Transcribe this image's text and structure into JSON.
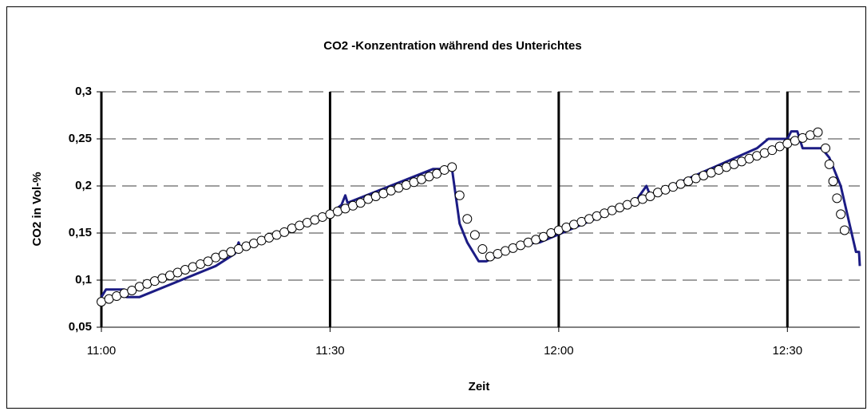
{
  "chart_data": {
    "type": "line",
    "title": "CO2 -Konzentration während des Unterichtes",
    "x_label": "Zeit",
    "y_label": "CO2 in Vol-%",
    "xlim": [
      0,
      99.5
    ],
    "xticks": [
      {
        "value": 0,
        "label": "11:00"
      },
      {
        "value": 30,
        "label": "11:30"
      },
      {
        "value": 60,
        "label": "12:00"
      },
      {
        "value": 90,
        "label": "12:30"
      }
    ],
    "ylim": [
      0.05,
      0.3
    ],
    "yticks": [
      {
        "value": 0.05,
        "label": "0,05"
      },
      {
        "value": 0.1,
        "label": "0,1"
      },
      {
        "value": 0.15,
        "label": "0,15"
      },
      {
        "value": 0.2,
        "label": "0,2"
      },
      {
        "value": 0.25,
        "label": "0,25"
      },
      {
        "value": 0.3,
        "label": "0,3"
      }
    ],
    "grid": true,
    "series": [
      {
        "kind": "line",
        "color": "#1c1c84",
        "x": [
          0,
          0.6,
          3,
          3.3,
          5,
          15,
          17.5,
          18,
          18.3,
          30,
          31.5,
          32,
          32.3,
          43.5,
          46,
          47,
          48,
          49.5,
          50.5,
          55,
          57.5,
          70,
          71.5,
          72,
          86,
          87.5,
          90,
          90.5,
          91.3,
          92,
          94.5,
          95.5,
          97,
          99,
          99.4,
          99.5
        ],
        "values": [
          0.082,
          0.09,
          0.09,
          0.082,
          0.082,
          0.115,
          0.128,
          0.14,
          0.133,
          0.17,
          0.18,
          0.19,
          0.182,
          0.218,
          0.218,
          0.16,
          0.14,
          0.12,
          0.12,
          0.138,
          0.14,
          0.183,
          0.2,
          0.19,
          0.24,
          0.25,
          0.25,
          0.258,
          0.258,
          0.24,
          0.24,
          0.23,
          0.2,
          0.13,
          0.13,
          0.115
        ]
      },
      {
        "kind": "markers",
        "color": "#ffffff",
        "x": [
          0,
          1,
          2,
          3,
          4,
          5,
          6,
          7,
          8,
          9,
          10,
          11,
          12,
          13,
          14,
          15,
          16,
          17,
          18,
          19,
          20,
          21,
          22,
          23,
          24,
          25,
          26,
          27,
          28,
          29,
          30,
          31,
          32,
          33,
          34,
          35,
          36,
          37,
          38,
          39,
          40,
          41,
          42,
          43,
          44,
          45,
          46,
          47,
          48,
          49,
          50,
          51,
          52,
          53,
          54,
          55,
          56,
          57,
          58,
          59,
          60,
          61,
          62,
          63,
          64,
          65,
          66,
          67,
          68,
          69,
          70,
          71,
          72,
          73,
          74,
          75,
          76,
          77,
          78,
          79,
          80,
          81,
          82,
          83,
          84,
          85,
          86,
          87,
          88,
          89,
          90,
          91,
          92,
          93,
          94,
          95,
          95.5,
          96,
          96.5,
          97,
          97.5
        ],
        "values": [
          0.077,
          0.08,
          0.083,
          0.086,
          0.089,
          0.093,
          0.096,
          0.099,
          0.102,
          0.105,
          0.108,
          0.111,
          0.114,
          0.117,
          0.12,
          0.124,
          0.127,
          0.13,
          0.133,
          0.136,
          0.139,
          0.142,
          0.145,
          0.148,
          0.151,
          0.155,
          0.158,
          0.161,
          0.164,
          0.167,
          0.17,
          0.173,
          0.176,
          0.179,
          0.182,
          0.186,
          0.189,
          0.192,
          0.195,
          0.198,
          0.201,
          0.204,
          0.207,
          0.21,
          0.213,
          0.217,
          0.22,
          0.19,
          0.165,
          0.148,
          0.133,
          0.125,
          0.128,
          0.131,
          0.134,
          0.137,
          0.14,
          0.143,
          0.146,
          0.15,
          0.153,
          0.156,
          0.159,
          0.162,
          0.165,
          0.168,
          0.171,
          0.174,
          0.177,
          0.18,
          0.183,
          0.186,
          0.189,
          0.193,
          0.196,
          0.199,
          0.202,
          0.205,
          0.208,
          0.211,
          0.214,
          0.217,
          0.22,
          0.223,
          0.226,
          0.229,
          0.232,
          0.235,
          0.238,
          0.242,
          0.245,
          0.248,
          0.251,
          0.254,
          0.257,
          0.24,
          0.223,
          0.205,
          0.187,
          0.17,
          0.153
        ]
      }
    ]
  }
}
